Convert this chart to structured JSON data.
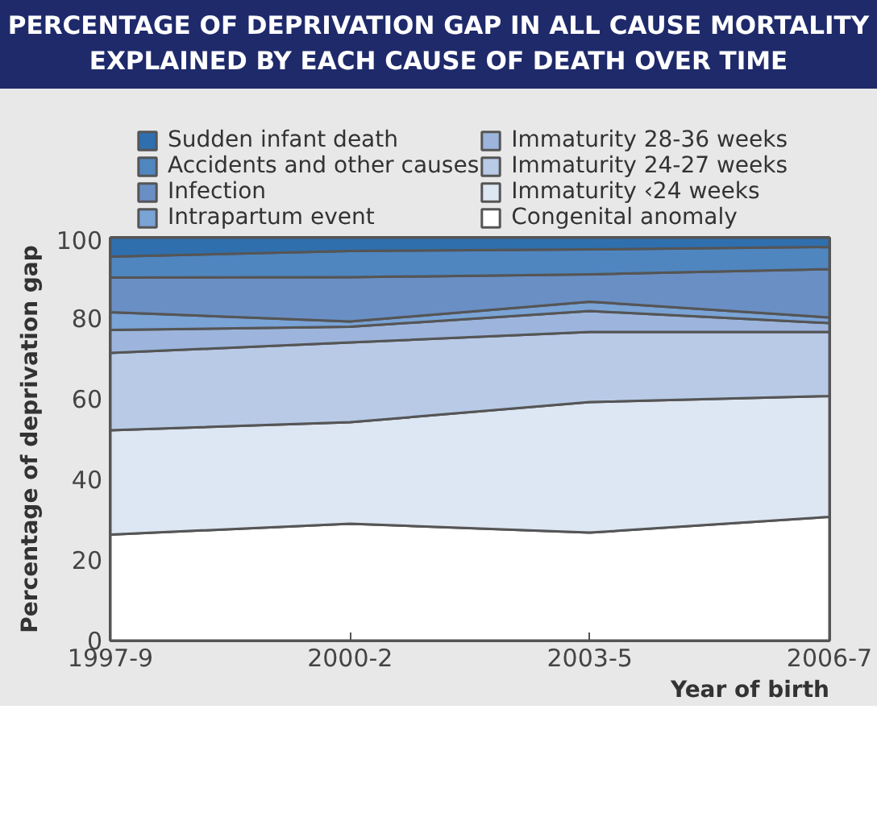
{
  "chart_data": {
    "type": "area",
    "stacked": true,
    "title": "PERCENTAGE OF DEPRIVATION GAP IN ALL CAUSE MORTALITY EXPLAINED BY EACH CAUSE OF DEATH OVER TIME",
    "xlabel": "Year of birth",
    "ylabel": "Percentage of deprivation gap",
    "categories": [
      "1997-9",
      "2000-2",
      "2003-5",
      "2006-7"
    ],
    "ylim": [
      0,
      100
    ],
    "yticks": [
      0,
      20,
      40,
      60,
      80,
      100
    ],
    "grid": false,
    "legend": "top",
    "series": [
      {
        "name": "Congenital anomaly",
        "color": "#ffffff",
        "values": [
          26.3,
          29.0,
          26.8,
          30.7
        ]
      },
      {
        "name": "Immaturity ‹24 weeks",
        "color": "#dde6f3",
        "values": [
          25.9,
          25.2,
          32.4,
          30.0
        ]
      },
      {
        "name": "Immaturity 24-27 weeks",
        "color": "#b8cae6",
        "values": [
          19.2,
          19.8,
          17.4,
          15.9
        ]
      },
      {
        "name": "Immaturity 28-36 weeks",
        "color": "#9db5dd",
        "values": [
          5.7,
          3.9,
          5.2,
          2.2
        ]
      },
      {
        "name": "Intrapartum event",
        "color": "#7aa3d6",
        "values": [
          4.4,
          1.3,
          2.3,
          1.4
        ]
      },
      {
        "name": "Infection",
        "color": "#6a8fc4",
        "values": [
          8.6,
          11.0,
          6.8,
          12.0
        ]
      },
      {
        "name": "Accidents and other causes",
        "color": "#4f86c0",
        "values": [
          5.2,
          6.5,
          6.2,
          5.5
        ]
      },
      {
        "name": "Sudden infant death",
        "color": "#2f6fae",
        "values": [
          4.7,
          3.3,
          2.9,
          2.3
        ]
      }
    ]
  }
}
